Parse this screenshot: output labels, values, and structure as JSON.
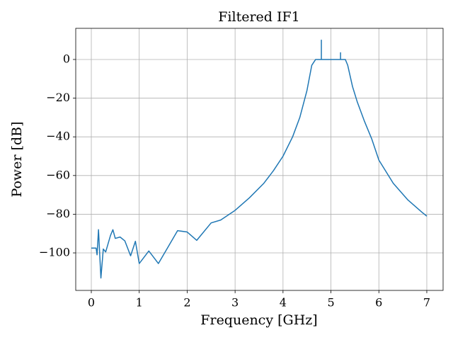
{
  "chart_data": {
    "type": "line",
    "title": "Filtered IF1",
    "xlabel": "Frequency [GHz]",
    "ylabel": "Power [dB]",
    "x": [
      0,
      0.1,
      0.12,
      0.15,
      0.2,
      0.25,
      0.3,
      0.4,
      0.45,
      0.5,
      0.6,
      0.7,
      0.82,
      0.92,
      1.0,
      1.2,
      1.4,
      1.6,
      1.8,
      2.0,
      2.2,
      2.5,
      2.7,
      3.0,
      3.3,
      3.6,
      3.8,
      4.0,
      4.2,
      4.35,
      4.5,
      4.6,
      4.68,
      4.8,
      4.8,
      4.8,
      5.2,
      5.2,
      5.2,
      5.3,
      5.35,
      5.45,
      5.55,
      5.7,
      5.85,
      6.0,
      6.3,
      6.6,
      6.9,
      7.0
    ],
    "series": [
      {
        "color": "#1f77b4",
        "values": [
          -97.5,
          -97.5,
          -101,
          -88,
          -113,
          -98,
          -99.5,
          -91,
          -88,
          -92.5,
          -91.8,
          -93.8,
          -101.5,
          -94,
          -105.5,
          -99,
          -105.5,
          -97,
          -88.5,
          -89.2,
          -93.5,
          -84.5,
          -83,
          -78,
          -71.5,
          -64,
          -57.5,
          -50,
          -40,
          -30,
          -16,
          -3,
          0,
          0,
          10,
          0,
          0,
          3.5,
          0,
          0,
          -3,
          -14,
          -22,
          -32,
          -41,
          -52,
          -64,
          -72.5,
          -79,
          -81
        ]
      }
    ],
    "xlim": [
      -0.325,
      7.34
    ],
    "ylim": [
      -119.4,
      16.1
    ],
    "xticks": [
      0,
      1,
      2,
      3,
      4,
      5,
      6,
      7
    ],
    "yticks": [
      {
        "value": -100,
        "label": "−100"
      },
      {
        "value": -80,
        "label": "−80"
      },
      {
        "value": -60,
        "label": "−60"
      },
      {
        "value": -40,
        "label": "−40"
      },
      {
        "value": -20,
        "label": "−20"
      },
      0
    ],
    "grid": true
  }
}
